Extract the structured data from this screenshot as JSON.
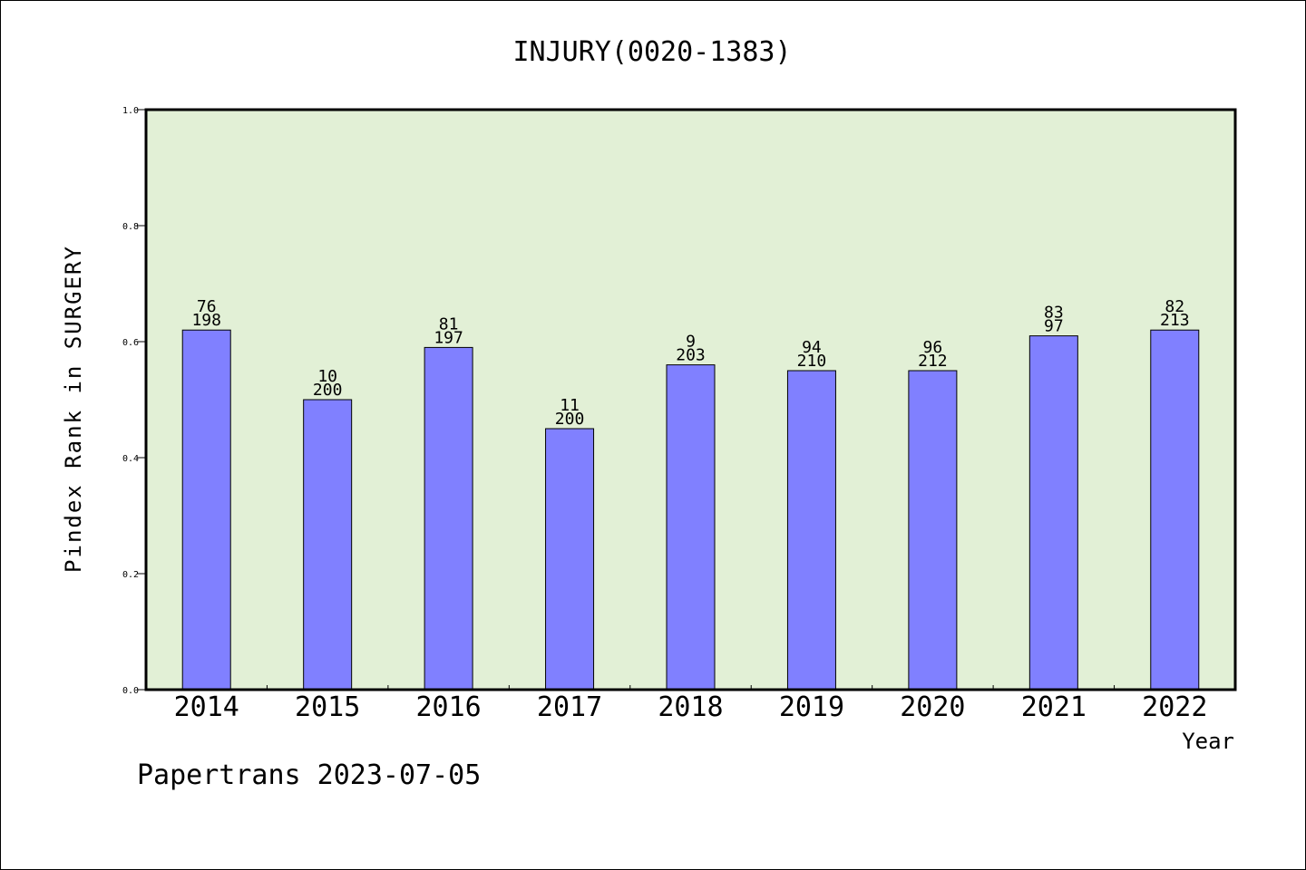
{
  "chart_data": {
    "type": "bar",
    "title": "INJURY(0020-1383)",
    "xlabel": "Year",
    "ylabel": "Pindex Rank in SURGERY",
    "footer": "Papertrans 2023-07-05",
    "ylim": [
      0,
      1.0
    ],
    "yticks": [
      "0.0",
      "0.2",
      "0.4",
      "0.6",
      "0.8",
      "1.0"
    ],
    "grid": false,
    "categories": [
      "2014",
      "2015",
      "2016",
      "2017",
      "2018",
      "2019",
      "2020",
      "2021",
      "2022"
    ],
    "values": [
      0.62,
      0.5,
      0.59,
      0.45,
      0.56,
      0.55,
      0.55,
      0.61,
      0.62
    ],
    "labels_top": [
      "76",
      "10",
      "81",
      "11",
      "9",
      "94",
      "96",
      "83",
      "82"
    ],
    "labels_bottom": [
      "198",
      "200",
      "197",
      "200",
      "203",
      "210",
      "212",
      "97",
      "213"
    ],
    "colors": {
      "plot_background": "#e2f0d6",
      "bar_fill": "#8080ff",
      "bar_stroke": "#000000",
      "axis": "#000000"
    }
  }
}
